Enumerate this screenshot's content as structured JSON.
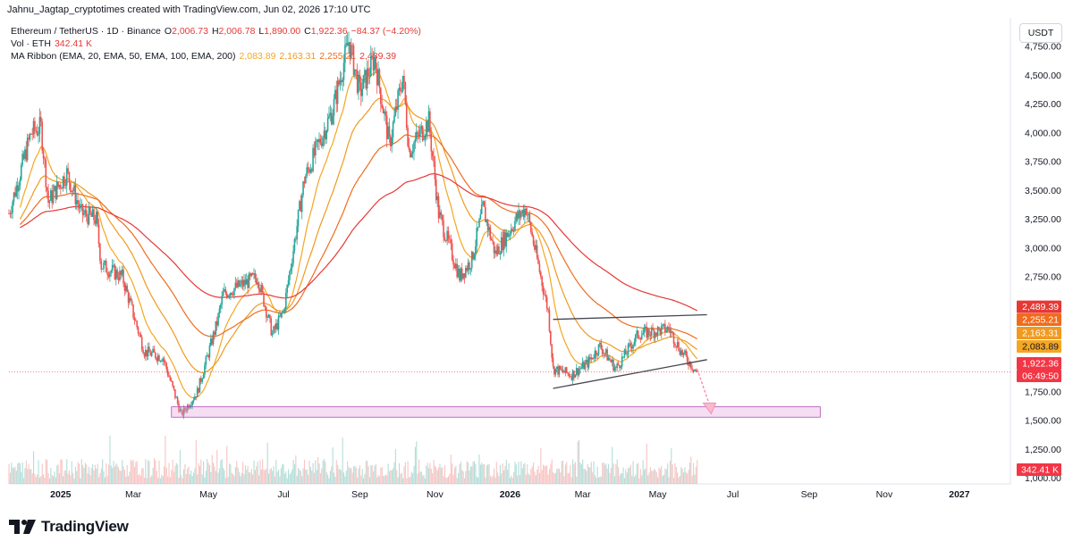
{
  "header": {
    "attribution": "Jahnu_Jagtap_cryptotimes created with TradingView.com, Jun 02, 2026 17:10 UTC"
  },
  "legend": {
    "symbol": "Ethereum / TetherUS · 1D · Binance",
    "ohlc_o_label": "O",
    "ohlc_o": "2,006.73",
    "ohlc_h_label": "H",
    "ohlc_h": "2,006.78",
    "ohlc_l_label": "L",
    "ohlc_l": "1,890.00",
    "ohlc_c_label": "C",
    "ohlc_c": "1,922.36",
    "change": "−84.37 (−4.20%)",
    "vol_label": "Vol · ETH",
    "vol_value": "342.41 K",
    "ma_label": "MA Ribbon (EMA, 20, EMA, 50, EMA, 100, EMA, 200)",
    "ma_values": [
      "2,083.89",
      "2,163.31",
      "2,255.21",
      "2,489.39"
    ]
  },
  "currency_button": "USDT",
  "footer": {
    "brand": "TradingView"
  },
  "colors": {
    "up": "#26a69a",
    "down": "#ef5350",
    "ema20": "#f5a623",
    "ema50": "#f09a20",
    "ema100": "#f06c1d",
    "ema200": "#e53935",
    "zone": "#e1a0e0"
  },
  "chart_data": {
    "type": "candlestick",
    "title": "Ethereum / TetherUS · 1D · Binance",
    "y_axis_ticks": [
      1000,
      1250,
      1500,
      1750,
      2000,
      2250,
      2500,
      2750,
      3000,
      3250,
      3500,
      3750,
      4000,
      4250,
      4500,
      4750
    ],
    "y_axis_tick_labels": [
      "1,000.00",
      "1,250.00",
      "1,500.00",
      "1,750.00",
      "2,000.00",
      "2,250.00",
      "2,500.00",
      "2,750.00",
      "3,000.00",
      "3,250.00",
      "3,500.00",
      "3,750.00",
      "4,000.00",
      "4,250.00",
      "4,500.00",
      "4,750.00"
    ],
    "x_axis_labels": [
      "2025",
      "Mar",
      "May",
      "Jul",
      "Sep",
      "Nov",
      "2026",
      "Mar",
      "May",
      "Jul",
      "Sep",
      "Nov",
      "2027"
    ],
    "x_axis_dates": [
      "2025-01-01",
      "2025-03-01",
      "2025-05-01",
      "2025-07-01",
      "2025-09-01",
      "2025-11-01",
      "2026-01-01",
      "2026-03-01",
      "2026-05-01",
      "2026-07-01",
      "2026-09-01",
      "2026-11-01",
      "2027-01-01"
    ],
    "x_range": [
      "2024-11-20",
      "2027-02-10"
    ],
    "y_range": [
      950,
      5000
    ],
    "price_anchors": [
      {
        "date": "2024-11-20",
        "close": 3300
      },
      {
        "date": "2024-12-08",
        "close": 4000
      },
      {
        "date": "2024-12-16",
        "close": 4050
      },
      {
        "date": "2024-12-22",
        "close": 3400
      },
      {
        "date": "2025-01-06",
        "close": 3650
      },
      {
        "date": "2025-01-18",
        "close": 3300
      },
      {
        "date": "2025-01-30",
        "close": 3250
      },
      {
        "date": "2025-02-03",
        "close": 2850
      },
      {
        "date": "2025-02-20",
        "close": 2750
      },
      {
        "date": "2025-03-10",
        "close": 2100
      },
      {
        "date": "2025-03-25",
        "close": 2050
      },
      {
        "date": "2025-04-09",
        "close": 1550
      },
      {
        "date": "2025-04-22",
        "close": 1750
      },
      {
        "date": "2025-05-08",
        "close": 2350
      },
      {
        "date": "2025-05-13",
        "close": 2600
      },
      {
        "date": "2025-06-10",
        "close": 2750
      },
      {
        "date": "2025-06-22",
        "close": 2250
      },
      {
        "date": "2025-07-01",
        "close": 2450
      },
      {
        "date": "2025-07-18",
        "close": 3600
      },
      {
        "date": "2025-08-10",
        "close": 4200
      },
      {
        "date": "2025-08-23",
        "close": 4800
      },
      {
        "date": "2025-09-01",
        "close": 4350
      },
      {
        "date": "2025-09-13",
        "close": 4650
      },
      {
        "date": "2025-09-25",
        "close": 3900
      },
      {
        "date": "2025-10-06",
        "close": 4500
      },
      {
        "date": "2025-10-11",
        "close": 3850
      },
      {
        "date": "2025-10-27",
        "close": 4100
      },
      {
        "date": "2025-11-04",
        "close": 3300
      },
      {
        "date": "2025-11-21",
        "close": 2750
      },
      {
        "date": "2025-12-01",
        "close": 2900
      },
      {
        "date": "2025-12-10",
        "close": 3350
      },
      {
        "date": "2025-12-20",
        "close": 2950
      },
      {
        "date": "2026-01-06",
        "close": 3250
      },
      {
        "date": "2026-01-14",
        "close": 3350
      },
      {
        "date": "2026-01-22",
        "close": 2950
      },
      {
        "date": "2026-02-01",
        "close": 2450
      },
      {
        "date": "2026-02-05",
        "close": 1950
      },
      {
        "date": "2026-02-20",
        "close": 1900
      },
      {
        "date": "2026-03-05",
        "close": 2000
      },
      {
        "date": "2026-03-15",
        "close": 2150
      },
      {
        "date": "2026-03-28",
        "close": 1950
      },
      {
        "date": "2026-04-15",
        "close": 2250
      },
      {
        "date": "2026-05-10",
        "close": 2300
      },
      {
        "date": "2026-05-20",
        "close": 2100
      },
      {
        "date": "2026-06-02",
        "close": 1922
      }
    ],
    "series": [
      {
        "name": "EMA 20",
        "color": "#f5a623",
        "last": 2083.89
      },
      {
        "name": "EMA 50",
        "color": "#f09a20",
        "last": 2163.31
      },
      {
        "name": "EMA 100",
        "color": "#f06c1d",
        "last": 2255.21
      },
      {
        "name": "EMA 200",
        "color": "#e53935",
        "last": 2489.39
      }
    ],
    "price_labels": [
      {
        "value": 2489.39,
        "text": "2,489.39",
        "color": "#e53935"
      },
      {
        "value": 2255.21,
        "text": "2,255.21",
        "color": "#f06c1d"
      },
      {
        "value": 2163.31,
        "text": "2,163.31",
        "color": "#f09a20"
      },
      {
        "value": 2083.89,
        "text": "2,083.89",
        "color": "#f5a623"
      }
    ],
    "last_price": {
      "value": 1922.36,
      "text": "1,922.36",
      "countdown": "06:49:50",
      "color": "#f23645"
    },
    "volume_label": {
      "text": "342.41 K",
      "color": "#f23645"
    },
    "annotations": {
      "support_zone": {
        "from_date": "2025-04-01",
        "to_date": "2026-09-10",
        "low": 1530,
        "high": 1620
      },
      "channel_upper": {
        "from": [
          "2026-02-05",
          2380
        ],
        "to": [
          "2026-06-10",
          2420
        ]
      },
      "channel_lower": {
        "from": [
          "2026-02-05",
          1780
        ],
        "to": [
          "2026-06-10",
          2030
        ]
      },
      "arrow": {
        "from": [
          "2026-06-02",
          1950
        ],
        "to": [
          "2026-06-12",
          1560
        ]
      }
    }
  }
}
